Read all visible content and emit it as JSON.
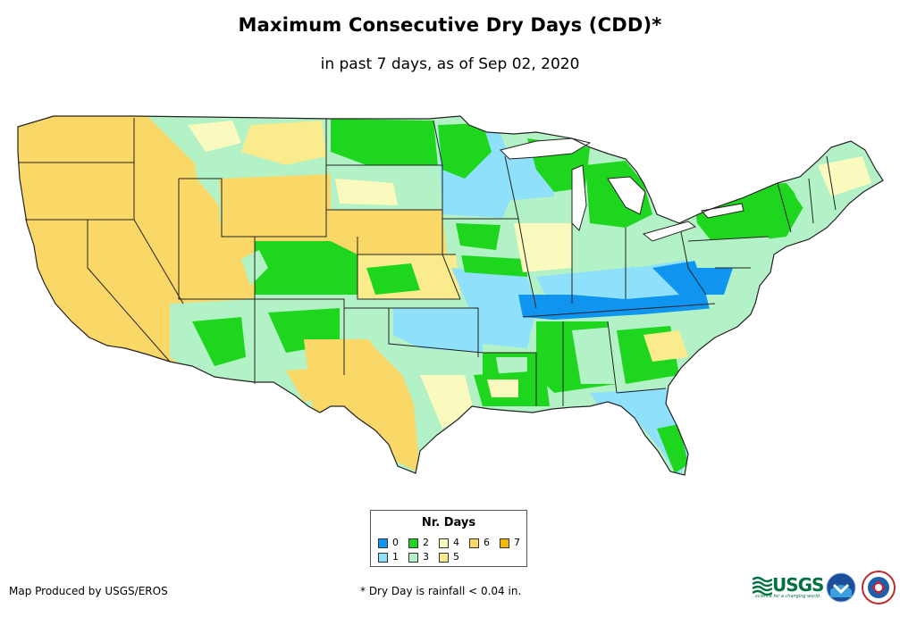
{
  "title": "Maximum Consecutive Dry Days (CDD)*",
  "subtitle": "in past 7 days, as of Sep 02, 2020",
  "legend": {
    "title": "Nr. Days",
    "items": [
      {
        "label": "0",
        "color": "#0f94f0"
      },
      {
        "label": "1",
        "color": "#8fe0fb"
      },
      {
        "label": "2",
        "color": "#1fd61f"
      },
      {
        "label": "3",
        "color": "#b3f2c6"
      },
      {
        "label": "4",
        "color": "#fafabf"
      },
      {
        "label": "5",
        "color": "#faeb8c"
      },
      {
        "label": "6",
        "color": "#fad868"
      },
      {
        "label": "7",
        "color": "#f5b800"
      }
    ]
  },
  "credit": "Map Produced by USGS/EROS",
  "footnote": "* Dry Day is rainfall < 0.04 in.",
  "logos": {
    "usgs_text": "USGS",
    "usgs_tagline": "science for a changing world"
  },
  "map": {
    "border_color": "#222222",
    "water_color": "#ffffff"
  }
}
